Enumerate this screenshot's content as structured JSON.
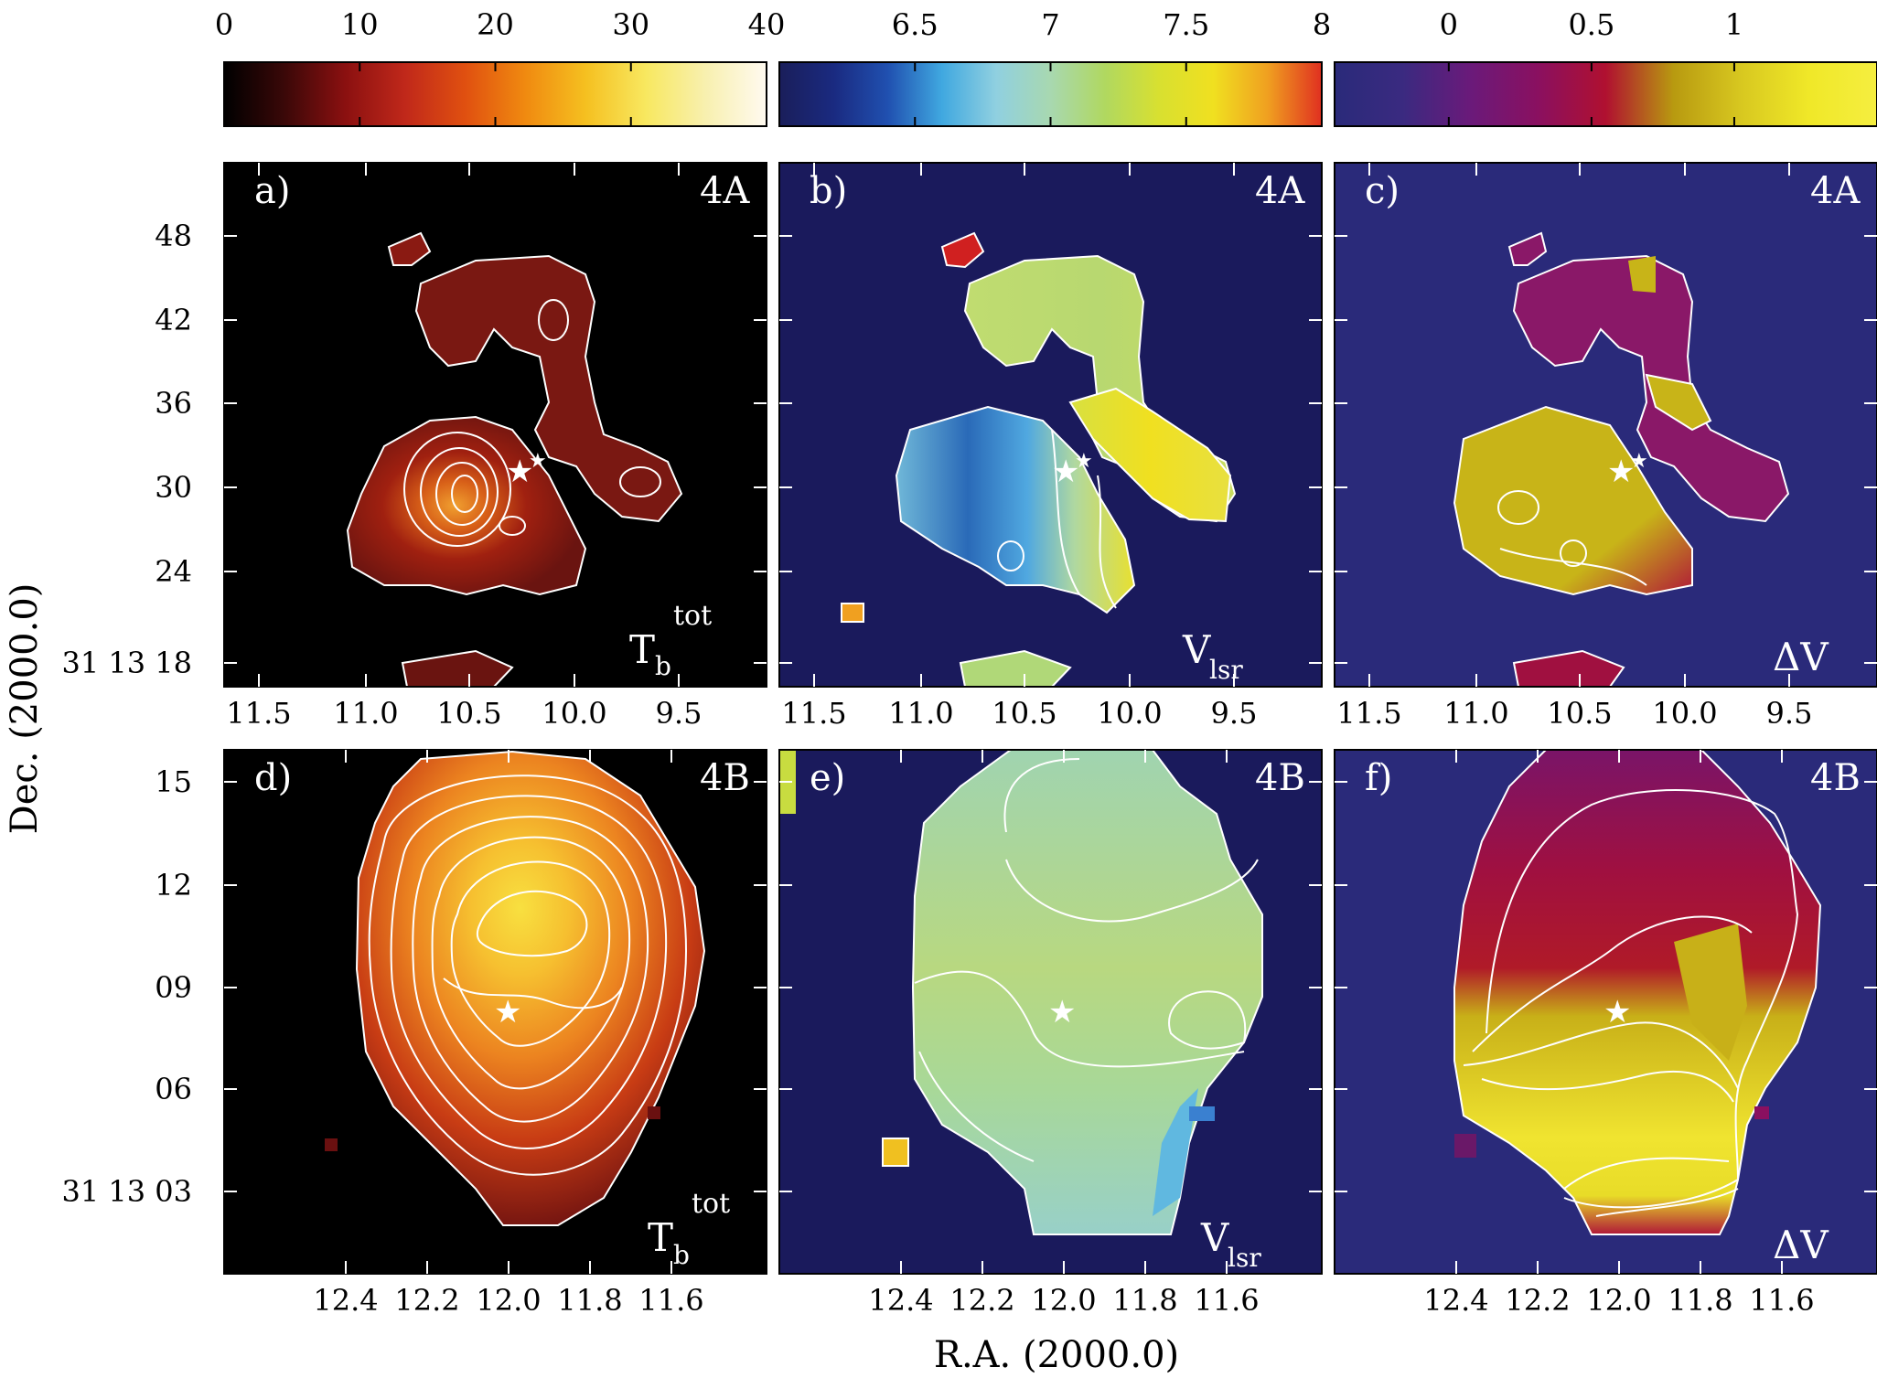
{
  "colorbars": [
    {
      "ticks": [
        "0",
        "10",
        "20",
        "30",
        "40"
      ],
      "range": [
        0,
        40
      ],
      "stops": [
        "#000000",
        "#3a0808",
        "#8a1010",
        "#c0281a",
        "#e05010",
        "#f08a10",
        "#f5c020",
        "#f8e860",
        "#f8f0b0",
        "#fffaf0"
      ]
    },
    {
      "ticks": [
        "6.5",
        "7",
        "7.5",
        "8"
      ],
      "range": [
        6.0,
        8.0
      ],
      "stops": [
        "#1a1e5a",
        "#1a2a80",
        "#2050b0",
        "#40a8e0",
        "#90d0e0",
        "#a8d8b0",
        "#b0d860",
        "#d8e030",
        "#f0e020",
        "#f0a020",
        "#e03020"
      ]
    },
    {
      "ticks": [
        "0",
        "0.5",
        "1"
      ],
      "range": [
        -0.4,
        1.5
      ],
      "stops": [
        "#2a2a7a",
        "#3a2a80",
        "#6a1a7a",
        "#8a1060",
        "#b01030",
        "#b89a10",
        "#d8c820",
        "#f0e828",
        "#f5ee40"
      ]
    }
  ],
  "panels": [
    {
      "letter": "a)",
      "region": "4A",
      "quantity": "T_b^tot"
    },
    {
      "letter": "b)",
      "region": "4A",
      "quantity": "V_lsr"
    },
    {
      "letter": "c)",
      "region": "4A",
      "quantity": "ΔV"
    },
    {
      "letter": "d)",
      "region": "4B",
      "quantity": "T_b^tot"
    },
    {
      "letter": "e)",
      "region": "4B",
      "quantity": "V_lsr"
    },
    {
      "letter": "f)",
      "region": "4B",
      "quantity": "ΔV"
    }
  ],
  "labels": {
    "tb_main": "T",
    "tb_sub": "b",
    "tb_sup": "tot",
    "vlsr_main": "V",
    "vlsr_sub": "lsr",
    "dv": "ΔV"
  },
  "axes": {
    "xlabel": "R.A. (2000.0)",
    "ylabel": "Dec. (2000.0)",
    "top_ra_ticks": [
      "11.5",
      "11.0",
      "10.5",
      "10.0",
      "9.5"
    ],
    "top_dec_ticks": [
      "48",
      "42",
      "36",
      "30",
      "24",
      "31 13 18"
    ],
    "bottom_ra_ticks": [
      "12.4",
      "12.2",
      "12.0",
      "11.8",
      "11.6"
    ],
    "bottom_dec_ticks": [
      "15",
      "12",
      "09",
      "06",
      "31 13 03"
    ]
  },
  "chart_data": [
    {
      "type": "heatmap",
      "panel": "a",
      "region": "4A",
      "quantity": "Tb tot",
      "colorbar_range": [
        0,
        40
      ],
      "ra_ticks": [
        11.5,
        11.0,
        10.5,
        10.0,
        9.5
      ],
      "dec_ticks": [
        "48",
        "42",
        "36",
        "30",
        "24",
        "31 13 18"
      ],
      "peak": {
        "ra": 10.75,
        "dec": 30,
        "value": 28
      },
      "contours": "white"
    },
    {
      "type": "heatmap",
      "panel": "b",
      "region": "4A",
      "quantity": "Vlsr",
      "colorbar_range": [
        6.0,
        8.0
      ],
      "ra_ticks": [
        11.5,
        11.0,
        10.5,
        10.0,
        9.5
      ],
      "dec_ticks": [
        "48",
        "42",
        "36",
        "30",
        "24",
        "31 13 18"
      ],
      "min": {
        "ra": 11.15,
        "dec": 29,
        "value": 6.5
      },
      "max": {
        "ra": 10.1,
        "dec": 30,
        "value": 7.6
      }
    },
    {
      "type": "heatmap",
      "panel": "c",
      "region": "4A",
      "quantity": "ΔV",
      "colorbar_range": [
        -0.4,
        1.5
      ],
      "ra_ticks": [
        11.5,
        11.0,
        10.5,
        10.0,
        9.5
      ],
      "dec_ticks": [
        "48",
        "42",
        "36",
        "30",
        "24",
        "31 13 18"
      ]
    },
    {
      "type": "heatmap",
      "panel": "d",
      "region": "4B",
      "quantity": "Tb tot",
      "colorbar_range": [
        0,
        40
      ],
      "ra_ticks": [
        12.4,
        12.2,
        12.0,
        11.8,
        11.6
      ],
      "dec_ticks": [
        "15",
        "12",
        "09",
        "06",
        "31 13 03"
      ],
      "peak": {
        "ra": 12.05,
        "dec": 10.8,
        "value": 33
      }
    },
    {
      "type": "heatmap",
      "panel": "e",
      "region": "4B",
      "quantity": "Vlsr",
      "colorbar_range": [
        6.0,
        8.0
      ],
      "ra_ticks": [
        12.4,
        12.2,
        12.0,
        11.8,
        11.6
      ],
      "dec_ticks": [
        "15",
        "12",
        "09",
        "06",
        "31 13 03"
      ],
      "mean_value": 7.1
    },
    {
      "type": "heatmap",
      "panel": "f",
      "region": "4B",
      "quantity": "ΔV",
      "colorbar_range": [
        -0.4,
        1.5
      ],
      "ra_ticks": [
        12.4,
        12.2,
        12.0,
        11.8,
        11.6
      ],
      "dec_ticks": [
        "15",
        "12",
        "09",
        "06",
        "31 13 03"
      ]
    }
  ]
}
